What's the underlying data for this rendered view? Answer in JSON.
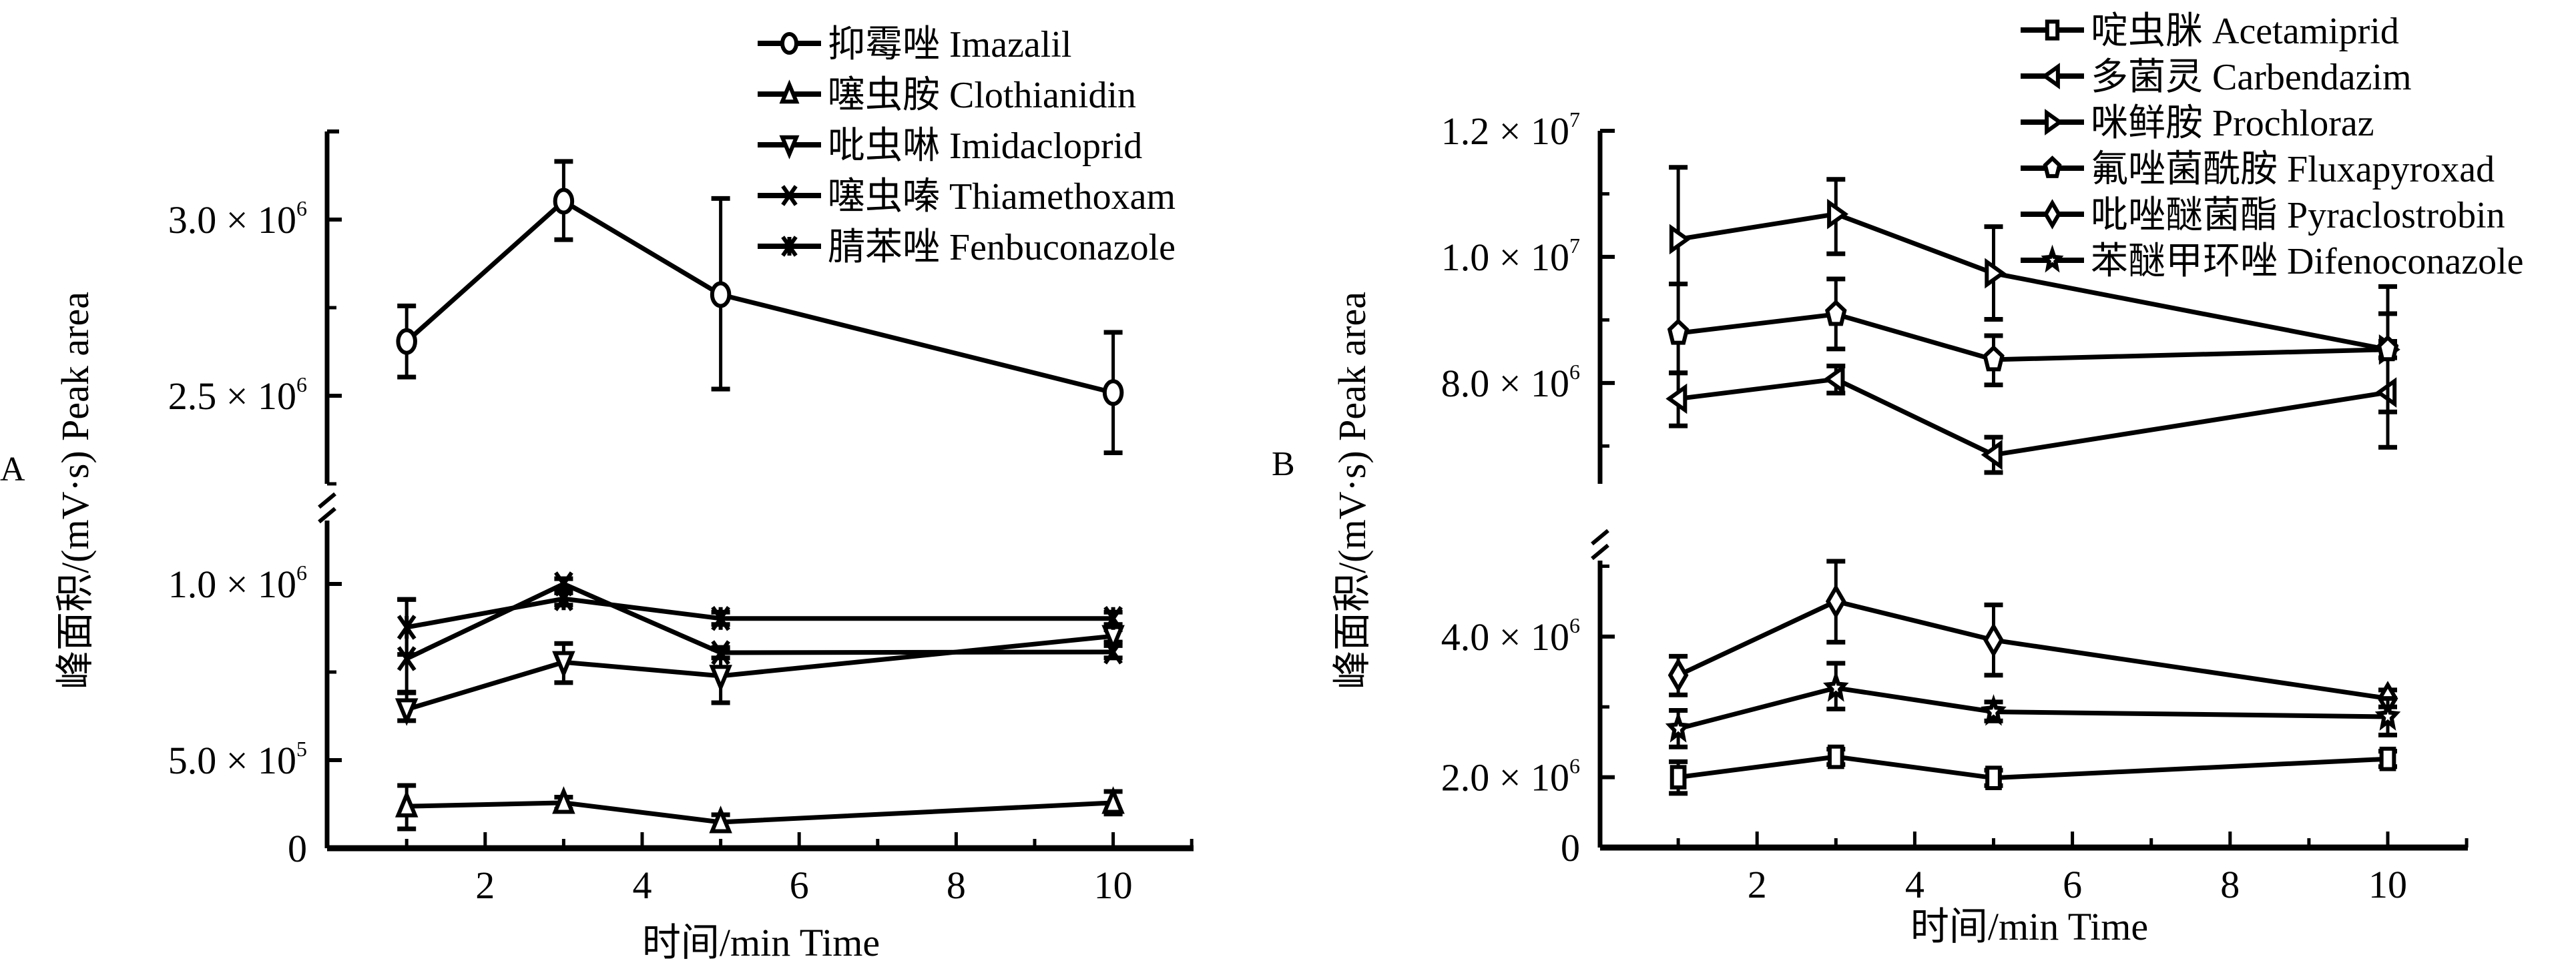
{
  "chart_data": [
    {
      "panel_label": "A",
      "type": "line",
      "title": "",
      "xlabel": "时间/min Time",
      "ylabel": "峰面积/(mV·s) Peak area",
      "xlim": [
        0,
        11
      ],
      "x_ticks": [
        2,
        4,
        6,
        8,
        10
      ],
      "x_minor_ticks": [
        1,
        3,
        5,
        7,
        9,
        11
      ],
      "y_axis_break": true,
      "y_segments": [
        {
          "name": "lower",
          "range": [
            250000,
            1180000
          ],
          "ticks": [
            {
              "value": 250000,
              "label": "0",
              "exp": ""
            },
            {
              "value": 500000,
              "label": "5.0 × 10",
              "exp": "5"
            },
            {
              "value": 1000000,
              "label": "1.0 × 10",
              "exp": "6"
            }
          ],
          "minor_ticks": [
            750000
          ]
        },
        {
          "name": "upper",
          "range": [
            2250000,
            3250000
          ],
          "ticks": [
            {
              "value": 2500000,
              "label": "2.5 × 10",
              "exp": "6"
            },
            {
              "value": 3000000,
              "label": "3.0 × 10",
              "exp": "6"
            }
          ],
          "minor_ticks": [
            2250000,
            2750000,
            3250000
          ]
        }
      ],
      "legend": {
        "placement": "top-right"
      },
      "x": [
        1,
        3,
        5,
        10
      ],
      "series": [
        {
          "name": "抑霉唑 Imazalil",
          "marker": "circle",
          "segment": "upper",
          "values": [
            2654000,
            3052000,
            2787000,
            2509000
          ],
          "err_low": [
            2553000,
            2943000,
            2519000,
            2338000
          ],
          "err_high": [
            2755000,
            3165000,
            3060000,
            2680000
          ]
        },
        {
          "name": "噻虫胺 Clothianidin",
          "marker": "triangle-up",
          "segment": "lower",
          "values": [
            369000,
            379000,
            324000,
            379000
          ],
          "err_low": [
            305000,
            360000,
            300000,
            347000
          ],
          "err_high": [
            428000,
            395000,
            345000,
            411000
          ]
        },
        {
          "name": "吡虫啉 Imidacloprid",
          "marker": "triangle-down",
          "segment": "lower",
          "values": [
            644000,
            778000,
            739000,
            852000
          ],
          "err_low": [
            612000,
            720000,
            663000,
            835000
          ],
          "err_high": [
            693000,
            831000,
            815000,
            870000
          ]
        },
        {
          "name": "噻虫嗪 Thiamethoxam",
          "marker": "x",
          "segment": "lower",
          "values": [
            788000,
            1000000,
            805000,
            807000
          ],
          "err_low": [
            691000,
            985000,
            790000,
            790000
          ],
          "err_high": [
            956000,
            1015000,
            820000,
            825000
          ]
        },
        {
          "name": "腈苯唑 Fenbuconazole",
          "marker": "asterisk",
          "segment": "lower",
          "values": [
            877000,
            958000,
            902000,
            902000
          ],
          "err_low": [
            800000,
            940000,
            885000,
            885000
          ],
          "err_high": [
            956000,
            975000,
            920000,
            920000
          ]
        }
      ]
    },
    {
      "panel_label": "B",
      "type": "line",
      "title": "",
      "xlabel": "时间/min Time",
      "ylabel": "峰面积/(mV·s) Peak area",
      "xlim": [
        0,
        11
      ],
      "x_ticks": [
        2,
        4,
        6,
        8,
        10
      ],
      "x_minor_ticks": [
        1,
        3,
        5,
        7,
        9,
        11
      ],
      "y_axis_break": true,
      "y_segments": [
        {
          "name": "lower",
          "range": [
            1000000,
            5080000
          ],
          "ticks": [
            {
              "value": 1000000,
              "label": "0",
              "exp": ""
            },
            {
              "value": 2000000,
              "label": "2.0 × 10",
              "exp": "6"
            },
            {
              "value": 4000000,
              "label": "4.0 × 10",
              "exp": "6"
            }
          ],
          "minor_ticks": [
            3000000,
            5000000
          ]
        },
        {
          "name": "upper",
          "range": [
            6400000,
            12000000
          ],
          "ticks": [
            {
              "value": 8000000,
              "label": "8.0 × 10",
              "exp": "6"
            },
            {
              "value": 10000000,
              "label": "1.0 × 10",
              "exp": "7"
            },
            {
              "value": 12000000,
              "label": "1.2 × 10",
              "exp": "7"
            }
          ],
          "minor_ticks": [
            7000000,
            9000000,
            11000000
          ]
        }
      ],
      "legend": {
        "placement": "top-right"
      },
      "x": [
        1,
        3,
        5,
        10
      ],
      "series": [
        {
          "name": "啶虫脒 Acetamiprid",
          "marker": "square",
          "segment": "lower",
          "values": [
            2000000,
            2290000,
            1990000,
            2260000
          ],
          "err_low": [
            1770000,
            2180000,
            1880000,
            2150000
          ],
          "err_high": [
            2220000,
            2400000,
            2100000,
            2370000
          ]
        },
        {
          "name": "多菌灵 Carbendazim",
          "marker": "triangle-left",
          "segment": "upper",
          "values": [
            7750000,
            8060000,
            6860000,
            7850000
          ],
          "err_low": [
            7320000,
            7840000,
            6580000,
            6980000
          ],
          "err_high": [
            8160000,
            8270000,
            7140000,
            9530000
          ]
        },
        {
          "name": "咪鲜胺 Prochloraz",
          "marker": "triangle-right",
          "segment": "upper",
          "values": [
            10280000,
            10680000,
            9740000,
            8530000
          ],
          "err_low": [
            9570000,
            10050000,
            9010000,
            8400000
          ],
          "err_high": [
            11420000,
            11230000,
            10480000,
            8660000
          ]
        },
        {
          "name": "氟唑菌酰胺 Fluxapyroxad",
          "marker": "pentagon",
          "segment": "upper",
          "values": [
            8790000,
            9090000,
            8370000,
            8530000
          ],
          "err_low": [
            8160000,
            8540000,
            7970000,
            7540000
          ],
          "err_high": [
            9570000,
            9650000,
            8750000,
            9100000
          ]
        },
        {
          "name": "吡唑醚菌酯 Pyraclostrobin",
          "marker": "diamond",
          "segment": "lower",
          "values": [
            3450000,
            4500000,
            3950000,
            3120000
          ],
          "err_low": [
            3170000,
            3920000,
            3450000,
            3000000
          ],
          "err_high": [
            3720000,
            5070000,
            4450000,
            3240000
          ]
        },
        {
          "name": "苯醚甲环唑 Difenoconazole",
          "marker": "star",
          "segment": "lower",
          "values": [
            2690000,
            3270000,
            2930000,
            2860000
          ],
          "err_low": [
            2430000,
            2970000,
            2800000,
            2600000
          ],
          "err_high": [
            2950000,
            3620000,
            3070000,
            3120000
          ]
        }
      ]
    }
  ]
}
